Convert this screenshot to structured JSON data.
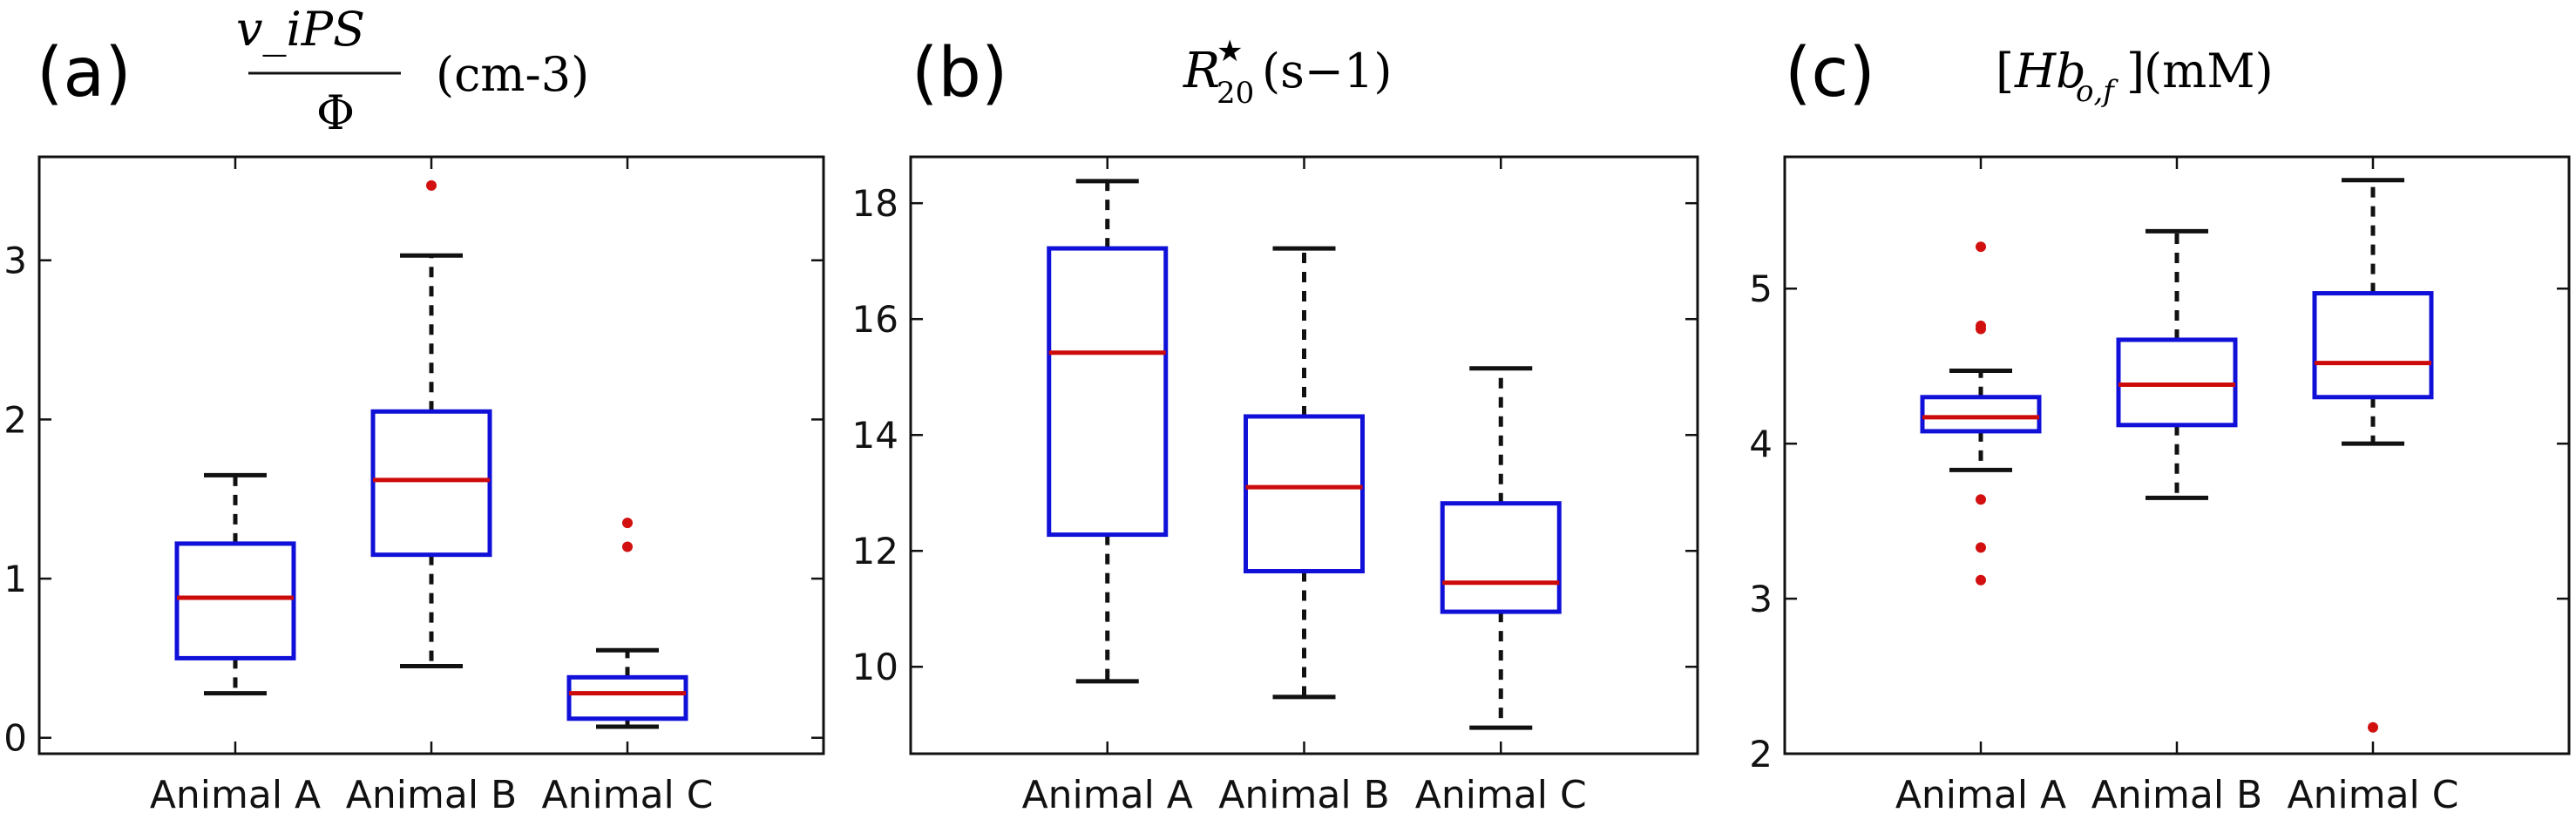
{
  "colors": {
    "box": "#1010d8",
    "median": "#cc0a0a",
    "whisker": "#111111",
    "outlier": "#d21010",
    "axes": "#111111"
  },
  "chart_data": [
    {
      "type": "box",
      "panel_label": "(a)",
      "title": {
        "num": "v_iPS",
        "den": "Φ",
        "unit": "(cm-3)"
      },
      "categories": [
        "Animal A",
        "Animal B",
        "Animal C"
      ],
      "ylim": [
        -0.1,
        3.65
      ],
      "yticks": [
        0,
        1,
        2,
        3
      ],
      "ytick_labels": [
        "0",
        "1",
        "2",
        "3"
      ],
      "boxes": [
        {
          "name": "Animal A",
          "whislo": 0.28,
          "q1": 0.5,
          "med": 0.88,
          "q3": 1.22,
          "whishi": 1.65,
          "fliers": []
        },
        {
          "name": "Animal B",
          "whislo": 0.45,
          "q1": 1.15,
          "med": 1.62,
          "q3": 2.05,
          "whishi": 3.03,
          "fliers": [
            3.47
          ]
        },
        {
          "name": "Animal C",
          "whislo": 0.07,
          "q1": 0.12,
          "med": 0.28,
          "q3": 0.38,
          "whishi": 0.55,
          "fliers": [
            1.2,
            1.35
          ]
        }
      ]
    },
    {
      "type": "box",
      "panel_label": "(b)",
      "title": {
        "base": "R",
        "sup": "★",
        "sub": "20",
        "unit": "(s−1)"
      },
      "categories": [
        "Animal A",
        "Animal B",
        "Animal C"
      ],
      "ylim": [
        8.5,
        18.8
      ],
      "yticks": [
        10,
        12,
        14,
        16,
        18
      ],
      "ytick_labels": [
        "10",
        "12",
        "14",
        "16",
        "18"
      ],
      "boxes": [
        {
          "name": "Animal A",
          "whislo": 9.75,
          "q1": 12.28,
          "med": 15.42,
          "q3": 17.22,
          "whishi": 18.38,
          "fliers": []
        },
        {
          "name": "Animal B",
          "whislo": 9.48,
          "q1": 11.65,
          "med": 13.1,
          "q3": 14.32,
          "whishi": 17.22,
          "fliers": []
        },
        {
          "name": "Animal C",
          "whislo": 8.95,
          "q1": 10.95,
          "med": 11.45,
          "q3": 12.82,
          "whishi": 15.15,
          "fliers": []
        }
      ]
    },
    {
      "type": "box",
      "panel_label": "(c)",
      "title": {
        "inner": "Hb",
        "sub": "o,f",
        "unit": "(mM)"
      },
      "categories": [
        "Animal A",
        "Animal B",
        "Animal C"
      ],
      "ylim": [
        2.0,
        5.85
      ],
      "yticks": [
        2,
        3,
        4,
        5
      ],
      "ytick_labels": [
        "2",
        "3",
        "4",
        "5"
      ],
      "boxes": [
        {
          "name": "Animal A",
          "whislo": 3.83,
          "q1": 4.08,
          "med": 4.17,
          "q3": 4.3,
          "whishi": 4.47,
          "fliers": [
            5.27,
            4.76,
            4.74,
            3.64,
            3.33,
            3.12
          ]
        },
        {
          "name": "Animal B",
          "whislo": 3.65,
          "q1": 4.12,
          "med": 4.38,
          "q3": 4.67,
          "whishi": 5.37,
          "fliers": []
        },
        {
          "name": "Animal C",
          "whislo": 4.0,
          "q1": 4.3,
          "med": 4.52,
          "q3": 4.97,
          "whishi": 5.7,
          "fliers": [
            2.17
          ]
        }
      ]
    }
  ]
}
